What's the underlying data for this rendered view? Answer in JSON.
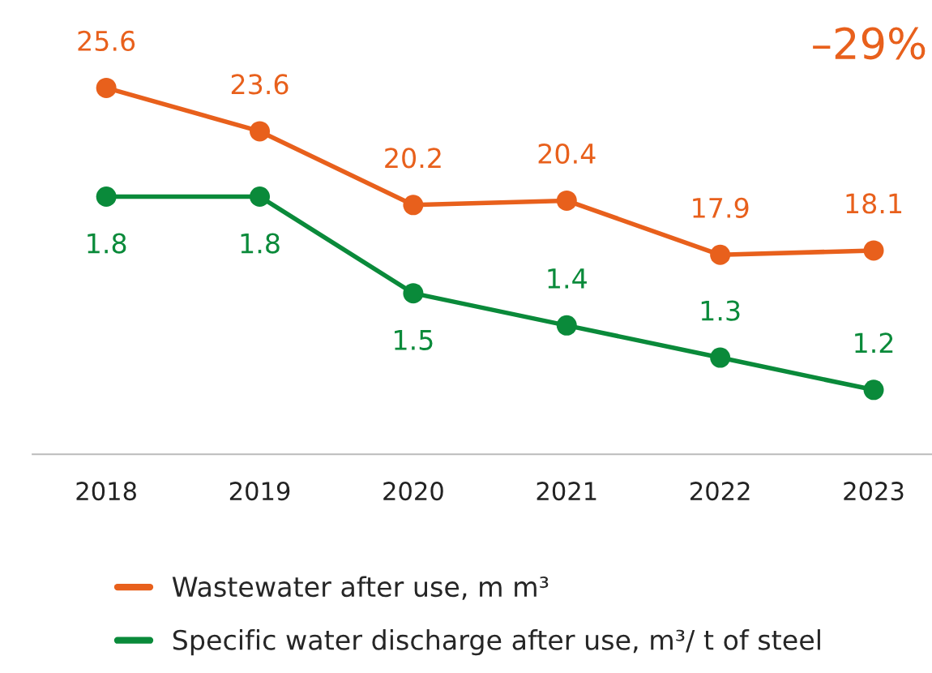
{
  "chart_data": {
    "type": "line",
    "categories": [
      "2018",
      "2019",
      "2020",
      "2021",
      "2022",
      "2023"
    ],
    "series": [
      {
        "name": "Wastewater after use, m m³",
        "color": "#e8601c",
        "values": [
          25.6,
          23.6,
          20.2,
          20.4,
          17.9,
          18.1
        ]
      },
      {
        "name": "Specific water discharge after use, m³/ t of steel",
        "color": "#0a8a3a",
        "values": [
          1.8,
          1.8,
          1.5,
          1.4,
          1.3,
          1.2
        ],
        "axis": "y2"
      }
    ],
    "ylim": [
      8.7,
      29.5
    ],
    "y2lim": [
      1.0,
      2.4
    ],
    "tick_labels": "x",
    "data_labels": true,
    "marker": "circle",
    "line_style": "solid",
    "grid": false,
    "legend": "bottom",
    "annotations": [
      "–29%"
    ]
  }
}
